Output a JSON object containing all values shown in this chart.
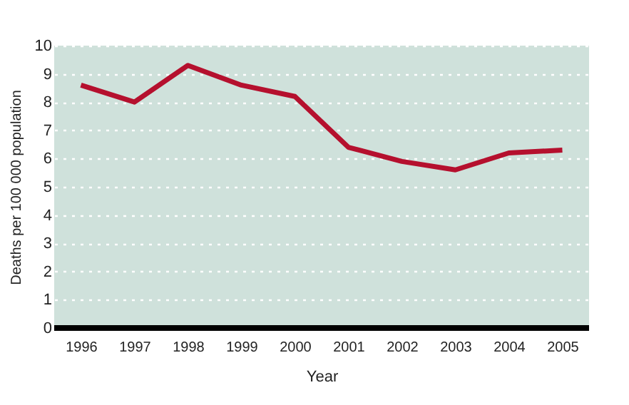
{
  "chart_data": {
    "type": "line",
    "xlabel": "Year",
    "ylabel": "Deaths per 100 000 population",
    "categories": [
      "1996",
      "1997",
      "1998",
      "1999",
      "2000",
      "2001",
      "2002",
      "2003",
      "2004",
      "2005"
    ],
    "series": [
      {
        "color": "#b5102e",
        "values": [
          8.6,
          8.0,
          9.3,
          8.6,
          8.2,
          6.4,
          5.9,
          5.6,
          6.2,
          6.3
        ]
      }
    ],
    "ylim": [
      0,
      10
    ],
    "yticks": [
      0,
      1,
      2,
      3,
      4,
      5,
      6,
      7,
      8,
      9,
      10
    ],
    "grid": "y",
    "line_style": "solid",
    "marker": "none"
  }
}
